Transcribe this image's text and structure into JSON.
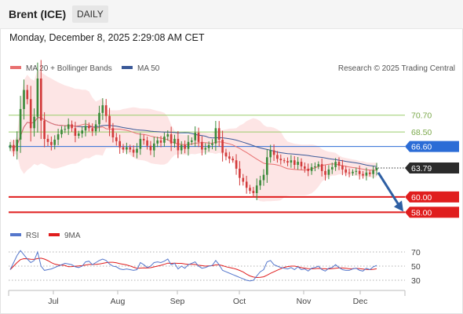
{
  "header": {
    "instrument": "Brent (ICE)",
    "timeframe": "DAILY"
  },
  "datetime": "Monday, December 8, 2025 2:29:08 AM CET",
  "legend": {
    "ma20_label": "MA 20 + Bollinger Bands",
    "ma50_label": "MA 50",
    "attribution": "Research © 2025 Trading Central"
  },
  "rsi_legend": {
    "rsi_label": "RSI",
    "ma_label": "9MA"
  },
  "colors": {
    "candle_up": "#3a8a3a",
    "candle_down": "#d23a3a",
    "ma20": "#e87070",
    "ma50": "#3b5998",
    "bollinger_fill": "#fde0e0",
    "resistance": "#9acd6b",
    "pivot": "#2b6cd6",
    "support": "#e01e1e",
    "rsi": "#5577cc",
    "rsi_ma": "#e01e1e"
  },
  "chart_data": [
    {
      "type": "candlestick",
      "series_labels": [
        "MA 20 + Bollinger Bands",
        "MA 50"
      ],
      "x_ticks": [
        "Jul",
        "Aug",
        "Sep",
        "Oct",
        "Nov",
        "Dec"
      ],
      "ylim": [
        56.5,
        75.5
      ],
      "levels": [
        {
          "label": "70.70",
          "value": 70.7,
          "kind": "resistance"
        },
        {
          "label": "68.50",
          "value": 68.5,
          "kind": "resistance"
        },
        {
          "label": "66.60",
          "value": 66.6,
          "kind": "pivot"
        },
        {
          "label": "63.79",
          "value": 63.79,
          "kind": "last"
        },
        {
          "label": "60.00",
          "value": 60.0,
          "kind": "support"
        },
        {
          "label": "58.00",
          "value": 58.0,
          "kind": "support"
        }
      ],
      "closes": [
        66.8,
        66.0,
        67.5,
        71.5,
        74.0,
        72.8,
        69.0,
        70.5,
        75.5,
        70.0,
        67.6,
        67.2,
        66.8,
        67.5,
        68.2,
        68.8,
        68.9,
        69.5,
        69.0,
        68.0,
        68.3,
        68.7,
        69.3,
        69.0,
        68.6,
        69.5,
        71.0,
        72.0,
        70.6,
        69.0,
        67.8,
        67.3,
        66.5,
        66.2,
        66.5,
        66.2,
        65.8,
        66.3,
        67.6,
        67.4,
        66.7,
        66.1,
        67.0,
        67.4,
        67.1,
        67.9,
        68.2,
        67.0,
        67.6,
        66.1,
        66.8,
        66.3,
        67.2,
        67.4,
        68.4,
        67.2,
        66.2,
        66.4,
        66.8,
        67.0,
        69.0,
        67.5,
        65.8,
        65.3,
        65.0,
        64.8,
        63.7,
        62.5,
        62.0,
        61.2,
        60.8,
        60.5,
        61.5,
        62.2,
        62.9,
        65.2,
        66.1,
        65.5,
        65.0,
        64.8,
        64.7,
        64.5,
        64.8,
        64.2,
        64.6,
        64.0,
        63.7,
        63.4,
        63.9,
        64.0,
        64.3,
        63.4,
        62.9,
        63.6,
        63.9,
        64.6,
        64.1,
        63.6,
        63.2,
        63.1,
        63.3,
        63.4,
        63.0,
        62.8,
        63.2,
        63.0,
        63.5,
        63.79
      ]
    },
    {
      "type": "line",
      "title": "RSI",
      "series_labels": [
        "RSI",
        "9MA"
      ],
      "y_ticks": [
        70,
        50,
        30
      ],
      "ylim": [
        20,
        80
      ],
      "rsi_values": [
        45,
        55,
        65,
        72,
        66,
        60,
        55,
        58,
        70,
        50,
        44,
        45,
        46,
        48,
        50,
        52,
        54,
        53,
        52,
        49,
        48,
        50,
        56,
        57,
        52,
        55,
        58,
        60,
        58,
        53,
        50,
        49,
        46,
        45,
        46,
        45,
        44,
        45,
        55,
        52,
        48,
        50,
        55,
        56,
        55,
        57,
        60,
        52,
        54,
        46,
        50,
        47,
        52,
        54,
        56,
        50,
        47,
        48,
        50,
        51,
        58,
        52,
        44,
        42,
        40,
        38,
        36,
        34,
        32,
        30,
        29,
        30,
        36,
        42,
        45,
        56,
        58,
        52,
        50,
        48,
        47,
        46,
        48,
        45,
        49,
        45,
        46,
        43,
        47,
        48,
        50,
        45,
        43,
        47,
        48,
        52,
        48,
        45,
        44,
        44,
        46,
        47,
        44,
        43,
        47,
        45,
        49,
        51
      ]
    }
  ]
}
